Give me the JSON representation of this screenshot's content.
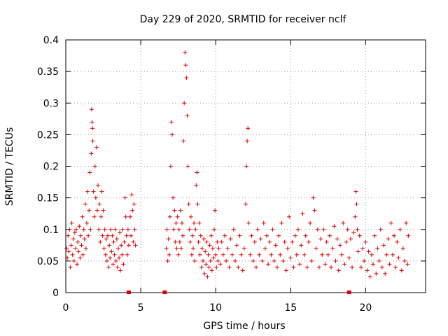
{
  "chart_data": {
    "type": "scatter",
    "title": "Day 229 of 2020, SRMTID for receiver nclf",
    "xlabel": "GPS time / hours",
    "ylabel": "SRMTID / TECUs",
    "xlim": [
      0,
      24
    ],
    "ylim": [
      0,
      0.4
    ],
    "xticks": [
      0,
      5,
      10,
      15,
      20
    ],
    "xtick_labels": [
      "0",
      "5",
      "10",
      "15",
      "20"
    ],
    "yticks": [
      0,
      0.05,
      0.1,
      0.15,
      0.2,
      0.25,
      0.3,
      0.35,
      0.4
    ],
    "ytick_labels": [
      "0",
      "0.05",
      "0.1",
      "0.15",
      "0.2",
      "0.25",
      "0.3",
      "0.35",
      "0.4"
    ],
    "grid": true,
    "marker": "plus",
    "color": "#e00000",
    "series": [
      {
        "points": [
          [
            0.05,
            0.07
          ],
          [
            0.1,
            0.055
          ],
          [
            0.15,
            0.09
          ],
          [
            0.2,
            0.065
          ],
          [
            0.25,
            0.1
          ],
          [
            0.3,
            0.04
          ],
          [
            0.35,
            0.075
          ],
          [
            0.4,
            0.11
          ],
          [
            0.45,
            0.06
          ],
          [
            0.5,
            0.085
          ],
          [
            0.55,
            0.05
          ],
          [
            0.6,
            0.095
          ],
          [
            0.65,
            0.07
          ],
          [
            0.7,
            0.1
          ],
          [
            0.75,
            0.045
          ],
          [
            0.8,
            0.08
          ],
          [
            0.85,
            0.065
          ],
          [
            0.9,
            0.105
          ],
          [
            0.95,
            0.055
          ],
          [
            1.0,
            0.09
          ],
          [
            1.05,
            0.075
          ],
          [
            1.1,
            0.12
          ],
          [
            1.15,
            0.06
          ],
          [
            1.2,
            0.1
          ],
          [
            1.25,
            0.085
          ],
          [
            1.3,
            0.14
          ],
          [
            1.35,
            0.07
          ],
          [
            1.4,
            0.11
          ],
          [
            1.45,
            0.16
          ],
          [
            1.5,
            0.09
          ],
          [
            1.55,
            0.13
          ],
          [
            1.6,
            0.19
          ],
          [
            1.65,
            0.1
          ],
          [
            1.7,
            0.22
          ],
          [
            1.72,
            0.29
          ],
          [
            1.75,
            0.27
          ],
          [
            1.78,
            0.26
          ],
          [
            1.8,
            0.24
          ],
          [
            1.85,
            0.16
          ],
          [
            1.9,
            0.12
          ],
          [
            1.95,
            0.2
          ],
          [
            2.0,
            0.15
          ],
          [
            2.05,
            0.23
          ],
          [
            2.1,
            0.13
          ],
          [
            2.15,
            0.17
          ],
          [
            2.2,
            0.1
          ],
          [
            2.25,
            0.14
          ],
          [
            2.3,
            0.08
          ],
          [
            2.35,
            0.12
          ],
          [
            2.4,
            0.16
          ],
          [
            2.45,
            0.09
          ],
          [
            2.5,
            0.13
          ],
          [
            2.55,
            0.07
          ],
          [
            2.6,
            0.1
          ],
          [
            2.65,
            0.06
          ],
          [
            2.7,
            0.085
          ],
          [
            2.75,
            0.05
          ],
          [
            2.8,
            0.09
          ],
          [
            2.85,
            0.04
          ],
          [
            2.9,
            0.075
          ],
          [
            2.95,
            0.055
          ],
          [
            3.0,
            0.1
          ],
          [
            3.05,
            0.065
          ],
          [
            3.1,
            0.09
          ],
          [
            3.15,
            0.045
          ],
          [
            3.2,
            0.08
          ],
          [
            3.25,
            0.06
          ],
          [
            3.3,
            0.1
          ],
          [
            3.35,
            0.05
          ],
          [
            3.4,
            0.085
          ],
          [
            3.45,
            0.04
          ],
          [
            3.5,
            0.07
          ],
          [
            3.55,
            0.055
          ],
          [
            3.6,
            0.095
          ],
          [
            3.65,
            0.035
          ],
          [
            3.7,
            0.075
          ],
          [
            3.75,
            0.06
          ],
          [
            3.8,
            0.1
          ],
          [
            3.85,
            0.045
          ],
          [
            3.9,
            0.08
          ],
          [
            3.95,
            0.15
          ],
          [
            4.0,
            0.12
          ],
          [
            4.05,
            0.09
          ],
          [
            4.1,
            0.06
          ],
          [
            4.15,
            0.1
          ],
          [
            4.2,
            0.075
          ],
          [
            4.3,
            0.12
          ],
          [
            4.35,
            0.09
          ],
          [
            4.4,
            0.155
          ],
          [
            4.45,
            0.13
          ],
          [
            4.5,
            0.08
          ],
          [
            4.55,
            0.14
          ],
          [
            4.6,
            0.1
          ],
          [
            4.65,
            0.075
          ],
          [
            6.7,
            0.07
          ],
          [
            6.75,
            0.1
          ],
          [
            6.8,
            0.05
          ],
          [
            6.85,
            0.085
          ],
          [
            6.9,
            0.06
          ],
          [
            6.95,
            0.12
          ],
          [
            7.0,
            0.2
          ],
          [
            7.05,
            0.27
          ],
          [
            7.1,
            0.25
          ],
          [
            7.15,
            0.15
          ],
          [
            7.2,
            0.1
          ],
          [
            7.25,
            0.13
          ],
          [
            7.3,
            0.08
          ],
          [
            7.35,
            0.11
          ],
          [
            7.4,
            0.07
          ],
          [
            7.45,
            0.12
          ],
          [
            7.5,
            0.06
          ],
          [
            7.55,
            0.1
          ],
          [
            7.6,
            0.08
          ],
          [
            7.65,
            0.13
          ],
          [
            7.7,
            0.07
          ],
          [
            7.75,
            0.11
          ],
          [
            7.8,
            0.09
          ],
          [
            7.85,
            0.24
          ],
          [
            7.9,
            0.3
          ],
          [
            7.95,
            0.38
          ],
          [
            8.0,
            0.36
          ],
          [
            8.05,
            0.34
          ],
          [
            8.1,
            0.28
          ],
          [
            8.15,
            0.2
          ],
          [
            8.2,
            0.14
          ],
          [
            8.25,
            0.1
          ],
          [
            8.3,
            0.08
          ],
          [
            8.35,
            0.12
          ],
          [
            8.4,
            0.06
          ],
          [
            8.45,
            0.09
          ],
          [
            8.5,
            0.07
          ],
          [
            8.55,
            0.11
          ],
          [
            8.6,
            0.05
          ],
          [
            8.65,
            0.1
          ],
          [
            8.7,
            0.17
          ],
          [
            8.75,
            0.19
          ],
          [
            8.8,
            0.14
          ],
          [
            8.85,
            0.08
          ],
          [
            8.9,
            0.11
          ],
          [
            8.95,
            0.06
          ],
          [
            9.0,
            0.09
          ],
          [
            9.05,
            0.04
          ],
          [
            9.1,
            0.07
          ],
          [
            9.15,
            0.05
          ],
          [
            9.2,
            0.085
          ],
          [
            9.25,
            0.03
          ],
          [
            9.3,
            0.065
          ],
          [
            9.35,
            0.045
          ],
          [
            9.4,
            0.08
          ],
          [
            9.45,
            0.025
          ],
          [
            9.5,
            0.06
          ],
          [
            9.55,
            0.04
          ],
          [
            9.6,
            0.075
          ],
          [
            9.65,
            0.05
          ],
          [
            9.7,
            0.09
          ],
          [
            9.75,
            0.035
          ],
          [
            9.8,
            0.07
          ],
          [
            9.85,
            0.055
          ],
          [
            9.9,
            0.1
          ],
          [
            9.95,
            0.13
          ],
          [
            10.0,
            0.06
          ],
          [
            10.05,
            0.04
          ],
          [
            10.1,
            0.08
          ],
          [
            10.15,
            0.05
          ],
          [
            10.2,
            0.07
          ],
          [
            10.3,
            0.045
          ],
          [
            10.4,
            0.08
          ],
          [
            10.5,
            0.06
          ],
          [
            10.6,
            0.09
          ],
          [
            10.7,
            0.05
          ],
          [
            10.8,
            0.07
          ],
          [
            10.9,
            0.04
          ],
          [
            11.0,
            0.085
          ],
          [
            11.1,
            0.06
          ],
          [
            11.2,
            0.1
          ],
          [
            11.3,
            0.05
          ],
          [
            11.4,
            0.075
          ],
          [
            11.5,
            0.04
          ],
          [
            11.6,
            0.09
          ],
          [
            11.7,
            0.06
          ],
          [
            11.8,
            0.035
          ],
          [
            11.9,
            0.07
          ],
          [
            12.0,
            0.14
          ],
          [
            12.05,
            0.2
          ],
          [
            12.1,
            0.24
          ],
          [
            12.15,
            0.26
          ],
          [
            12.2,
            0.11
          ],
          [
            12.3,
            0.06
          ],
          [
            12.4,
            0.09
          ],
          [
            12.5,
            0.05
          ],
          [
            12.6,
            0.08
          ],
          [
            12.7,
            0.04
          ],
          [
            12.8,
            0.1
          ],
          [
            12.9,
            0.06
          ],
          [
            13.0,
            0.085
          ],
          [
            13.1,
            0.05
          ],
          [
            13.2,
            0.11
          ],
          [
            13.3,
            0.07
          ],
          [
            13.4,
            0.09
          ],
          [
            13.5,
            0.045
          ],
          [
            13.6,
            0.08
          ],
          [
            13.7,
            0.06
          ],
          [
            13.8,
            0.1
          ],
          [
            13.9,
            0.05
          ],
          [
            14.0,
            0.075
          ],
          [
            14.1,
            0.04
          ],
          [
            14.2,
            0.09
          ],
          [
            14.3,
            0.06
          ],
          [
            14.4,
            0.11
          ],
          [
            14.5,
            0.05
          ],
          [
            14.6,
            0.08
          ],
          [
            14.7,
            0.035
          ],
          [
            14.8,
            0.07
          ],
          [
            14.9,
            0.12
          ],
          [
            15.0,
            0.055
          ],
          [
            15.1,
            0.08
          ],
          [
            15.2,
            0.04
          ],
          [
            15.3,
            0.09
          ],
          [
            15.4,
            0.06
          ],
          [
            15.5,
            0.1
          ],
          [
            15.6,
            0.045
          ],
          [
            15.7,
            0.075
          ],
          [
            15.8,
            0.125
          ],
          [
            15.9,
            0.06
          ],
          [
            16.0,
            0.09
          ],
          [
            16.1,
            0.04
          ],
          [
            16.2,
            0.08
          ],
          [
            16.3,
            0.11
          ],
          [
            16.4,
            0.05
          ],
          [
            16.5,
            0.15
          ],
          [
            16.6,
            0.13
          ],
          [
            16.7,
            0.07
          ],
          [
            16.8,
            0.1
          ],
          [
            16.9,
            0.04
          ],
          [
            17.0,
            0.085
          ],
          [
            17.1,
            0.06
          ],
          [
            17.2,
            0.1
          ],
          [
            17.3,
            0.045
          ],
          [
            17.4,
            0.08
          ],
          [
            17.5,
            0.06
          ],
          [
            17.6,
            0.09
          ],
          [
            17.7,
            0.04
          ],
          [
            17.8,
            0.07
          ],
          [
            17.9,
            0.105
          ],
          [
            18.0,
            0.05
          ],
          [
            18.1,
            0.085
          ],
          [
            18.2,
            0.035
          ],
          [
            18.3,
            0.075
          ],
          [
            18.4,
            0.06
          ],
          [
            18.5,
            0.11
          ],
          [
            18.6,
            0.045
          ],
          [
            18.7,
            0.08
          ],
          [
            18.8,
            0.1
          ],
          [
            18.9,
            0.055
          ],
          [
            19.0,
            0.085
          ],
          [
            19.1,
            0.04
          ],
          [
            19.2,
            0.095
          ],
          [
            19.3,
            0.12
          ],
          [
            19.35,
            0.16
          ],
          [
            19.4,
            0.14
          ],
          [
            19.45,
            0.1
          ],
          [
            19.5,
            0.065
          ],
          [
            19.6,
            0.09
          ],
          [
            19.7,
            0.04
          ],
          [
            19.8,
            0.07
          ],
          [
            19.9,
            0.05
          ],
          [
            20.0,
            0.08
          ],
          [
            20.1,
            0.035
          ],
          [
            20.2,
            0.065
          ],
          [
            20.3,
            0.025
          ],
          [
            20.4,
            0.06
          ],
          [
            20.5,
            0.045
          ],
          [
            20.6,
            0.09
          ],
          [
            20.7,
            0.03
          ],
          [
            20.8,
            0.07
          ],
          [
            20.9,
            0.05
          ],
          [
            21.0,
            0.1
          ],
          [
            21.1,
            0.04
          ],
          [
            21.2,
            0.075
          ],
          [
            21.3,
            0.03
          ],
          [
            21.4,
            0.06
          ],
          [
            21.5,
            0.085
          ],
          [
            21.6,
            0.045
          ],
          [
            21.7,
            0.11
          ],
          [
            21.8,
            0.06
          ],
          [
            21.9,
            0.09
          ],
          [
            22.0,
            0.04
          ],
          [
            22.1,
            0.08
          ],
          [
            22.2,
            0.055
          ],
          [
            22.3,
            0.1
          ],
          [
            22.4,
            0.035
          ],
          [
            22.5,
            0.07
          ],
          [
            22.6,
            0.05
          ],
          [
            22.7,
            0.11
          ],
          [
            22.8,
            0.045
          ],
          [
            22.85,
            0.09
          ]
        ]
      }
    ],
    "gap_markers_x": [
      4.2,
      6.6,
      18.9
    ]
  }
}
